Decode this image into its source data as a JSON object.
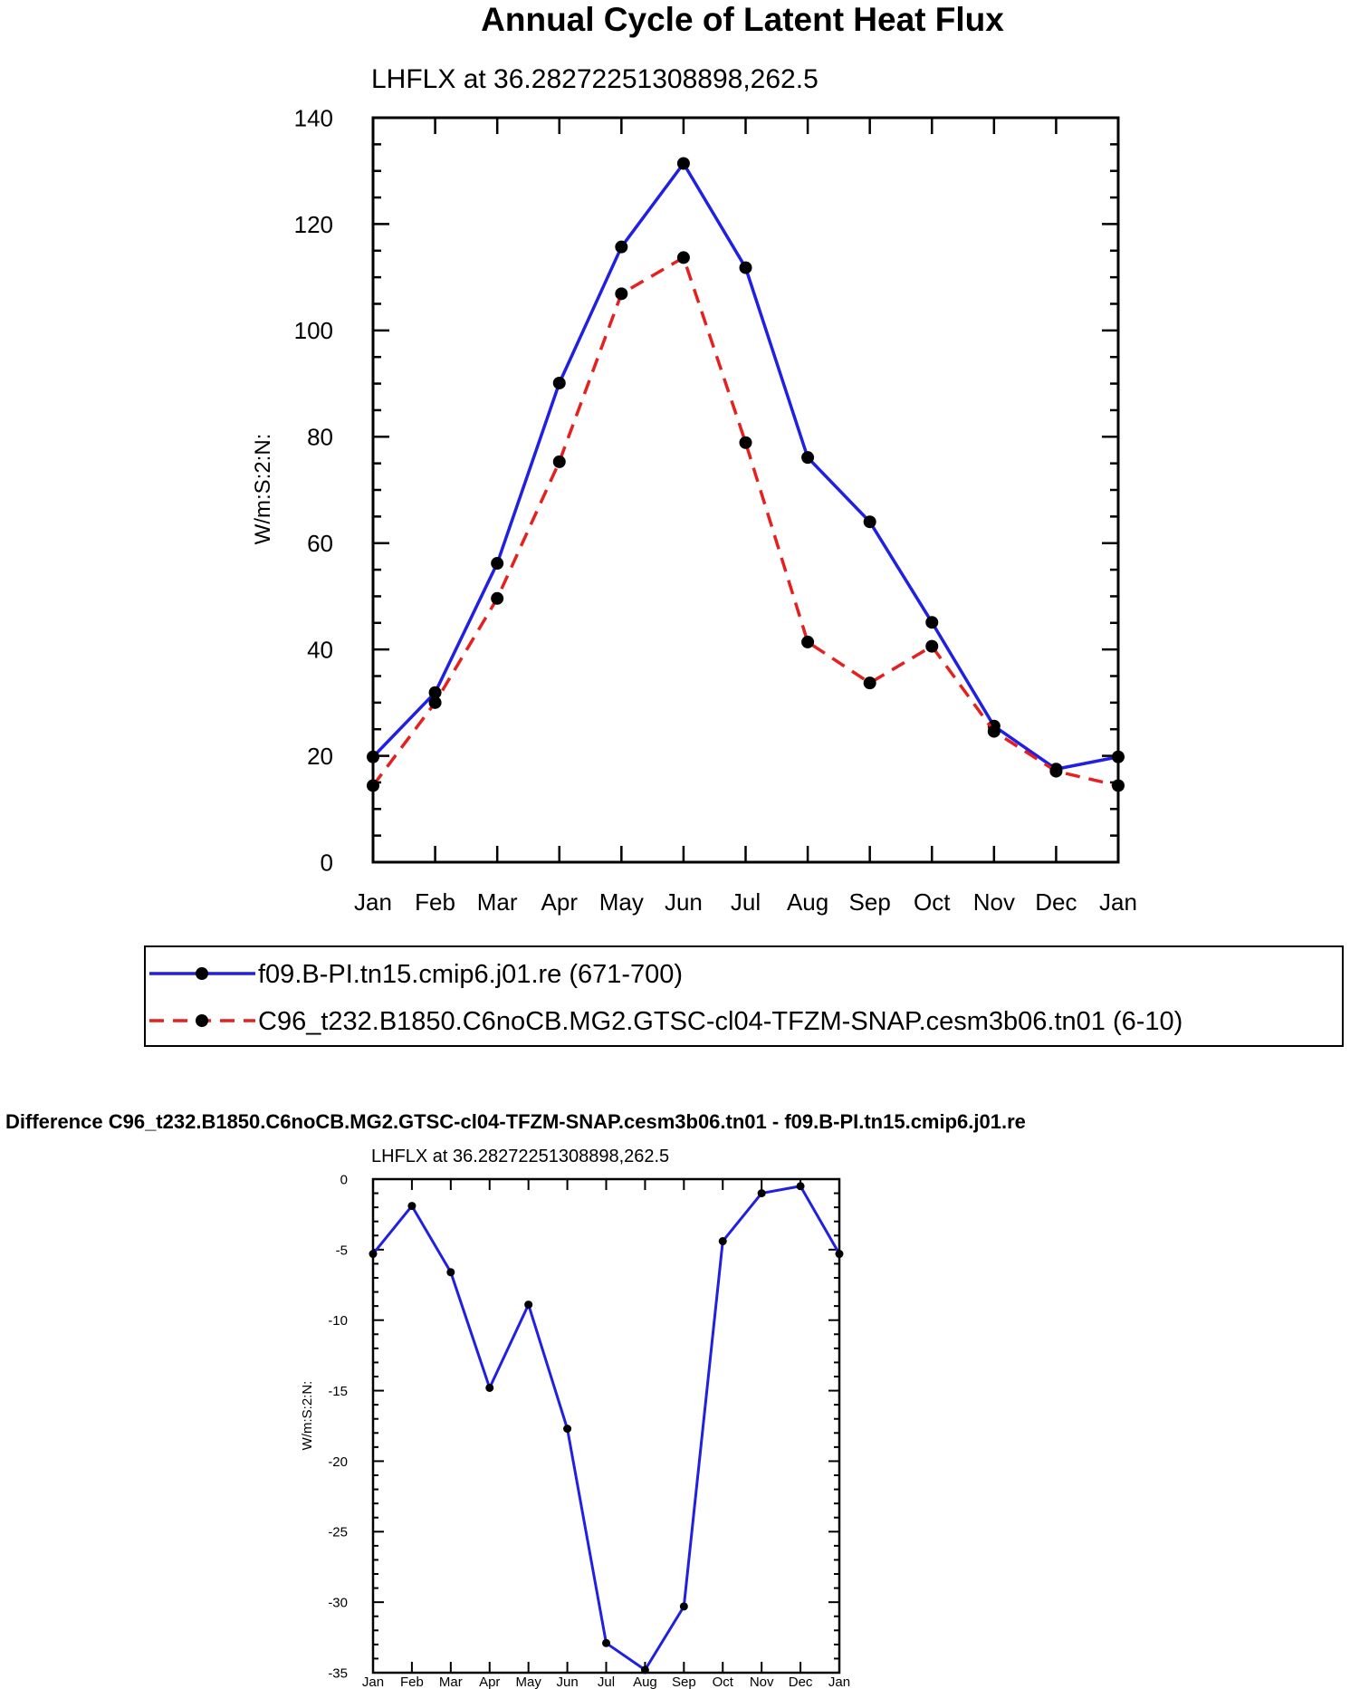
{
  "chart_data": [
    {
      "type": "line",
      "title": "Annual Cycle of Latent Heat Flux",
      "subtitle": "LHFLX at 36.28272251308898,262.5",
      "xlabel": "",
      "ylabel": "W/m:S:2:N:",
      "categories": [
        "Jan",
        "Feb",
        "Mar",
        "Apr",
        "May",
        "Jun",
        "Jul",
        "Aug",
        "Sep",
        "Oct",
        "Nov",
        "Dec",
        "Jan"
      ],
      "ylim": [
        0,
        140
      ],
      "yticks": [
        "0",
        "20",
        "40",
        "60",
        "80",
        "100",
        "120",
        "140"
      ],
      "grid": false,
      "legend_position": "bottom",
      "series": [
        {
          "name": "f09.B-PI.tn15.cmip6.j01.re (671-700)",
          "color": "#1f1fe6",
          "dash": "solid",
          "values": [
            19.8,
            31.9,
            56.2,
            90.1,
            115.7,
            131.4,
            111.8,
            76.1,
            64.0,
            45.1,
            25.6,
            17.5,
            19.8
          ]
        },
        {
          "name": "C96_t232.B1850.C6noCB.MG2.GTSC-cl04-TFZM-SNAP.cesm3b06.tn01 (6-10)",
          "color": "#e61f1f",
          "dash": "dashed",
          "values": [
            14.4,
            30.0,
            49.6,
            75.3,
            106.9,
            113.7,
            78.9,
            41.4,
            33.7,
            40.6,
            24.6,
            17.1,
            14.4
          ]
        }
      ]
    },
    {
      "type": "line",
      "title": "Difference C96_t232.B1850.C6noCB.MG2.GTSC-cl04-TFZM-SNAP.cesm3b06.tn01 - f09.B-PI.tn15.cmip6.j01.re",
      "subtitle": "LHFLX at 36.28272251308898,262.5",
      "xlabel": "",
      "ylabel": "W/m:S:2:N:",
      "categories": [
        "Jan",
        "Feb",
        "Mar",
        "Apr",
        "May",
        "Jun",
        "Jul",
        "Aug",
        "Sep",
        "Oct",
        "Nov",
        "Dec",
        "Jan"
      ],
      "ylim": [
        -35,
        0
      ],
      "yticks": [
        "0",
        "-5",
        "-10",
        "-15",
        "-20",
        "-25",
        "-30",
        "-35"
      ],
      "grid": false,
      "series": [
        {
          "name": "Difference",
          "color": "#1f1fe6",
          "dash": "solid",
          "values": [
            -5.3,
            -1.9,
            -6.6,
            -14.8,
            -8.9,
            -17.7,
            -32.9,
            -34.8,
            -30.3,
            -4.4,
            -1.0,
            -0.5,
            -5.3
          ]
        }
      ]
    }
  ]
}
